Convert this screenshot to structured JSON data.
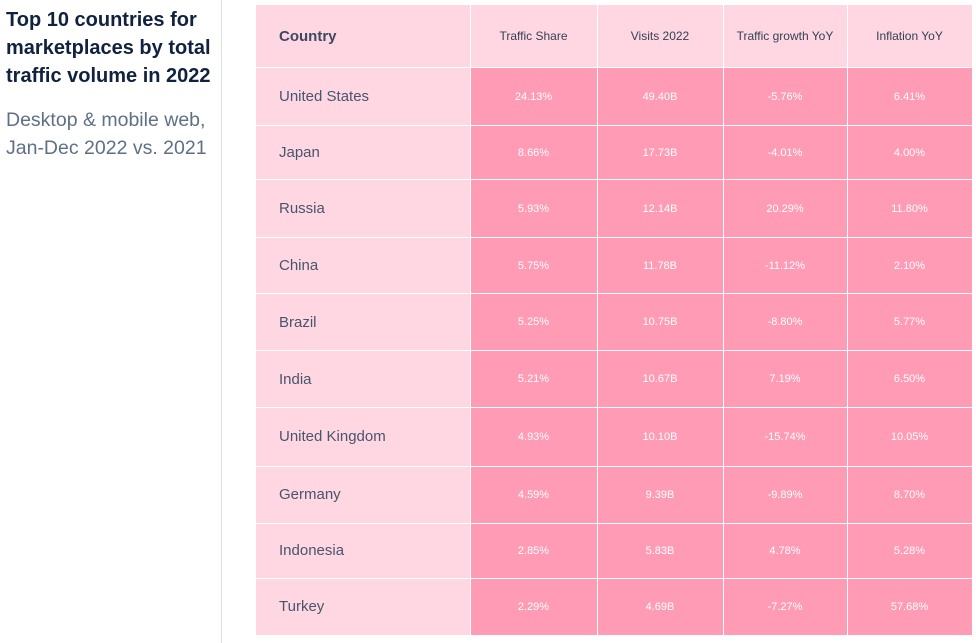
{
  "title": "Top 10 countries for marketplaces by total traffic volume in 2022",
  "subtitle": "Desktop & mobile web, Jan-Dec 2022 vs. 2021",
  "colors": {
    "header_bg": "#ffd7e2",
    "country_bg": "#ffd7e2",
    "value_bg": "#ff9bb4",
    "title": "#10223f",
    "subtitle": "#5f7086"
  },
  "chart_data": {
    "type": "table",
    "columns": [
      "Country",
      "Traffic Share",
      "Visits 2022",
      "Traffic growth YoY",
      "Inflation YoY"
    ],
    "rows": [
      [
        "United States",
        "24.13%",
        "49.40B",
        "-5.76%",
        "6.41%"
      ],
      [
        "Japan",
        "8.66%",
        "17.73B",
        "-4.01%",
        "4.00%"
      ],
      [
        "Russia",
        "5.93%",
        "12.14B",
        "20.29%",
        "11.80%"
      ],
      [
        "China",
        "5.75%",
        "11.78B",
        "-11.12%",
        "2.10%"
      ],
      [
        "Brazil",
        "5.25%",
        "10.75B",
        "-8.80%",
        "5.77%"
      ],
      [
        "India",
        "5.21%",
        "10.67B",
        "7.19%",
        "6.50%"
      ],
      [
        "United Kingdom",
        "4.93%",
        "10.10B",
        "-15.74%",
        "10.05%"
      ],
      [
        "Germany",
        "4.59%",
        "9.39B",
        "-9.89%",
        "8.70%"
      ],
      [
        "Indonesia",
        "2.85%",
        "5.83B",
        "4.78%",
        "5.28%"
      ],
      [
        "Turkey",
        "2.29%",
        "4.69B",
        "-7.27%",
        "57.68%"
      ]
    ]
  }
}
